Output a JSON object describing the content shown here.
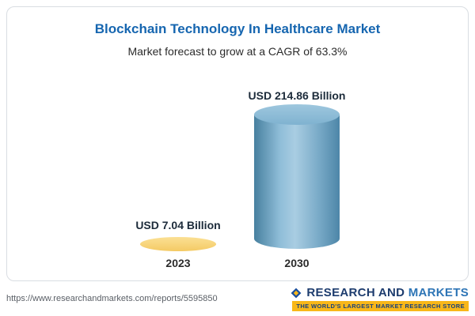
{
  "card": {
    "title": "Blockchain Technology In Healthcare Market",
    "subtitle": "Market forecast to grow at a CAGR of 63.3%"
  },
  "chart_data": {
    "type": "bar",
    "title": "Blockchain Technology In Healthcare Market",
    "subtitle": "Market forecast to grow at a CAGR of 63.3%",
    "cagr": "63.3%",
    "unit": "USD Billion",
    "categories": [
      "2023",
      "2030"
    ],
    "values": [
      7.04,
      214.86
    ],
    "value_labels": [
      "USD 7.04 Billion",
      "USD 214.86 Billion"
    ],
    "bar_colors": [
      "#f2c964",
      "#4e88b2"
    ],
    "ylim": [
      0,
      230
    ],
    "grid": false,
    "legend": false
  },
  "footer": {
    "url": "https://www.researchandmarkets.com/reports/5595850",
    "logo_primary": "RESEARCH AND",
    "logo_secondary": "MARKETS",
    "logo_tagline": "THE WORLD'S LARGEST MARKET RESEARCH STORE",
    "brand_blue": "#1d3c6e",
    "brand_yellow": "#f8b719"
  }
}
